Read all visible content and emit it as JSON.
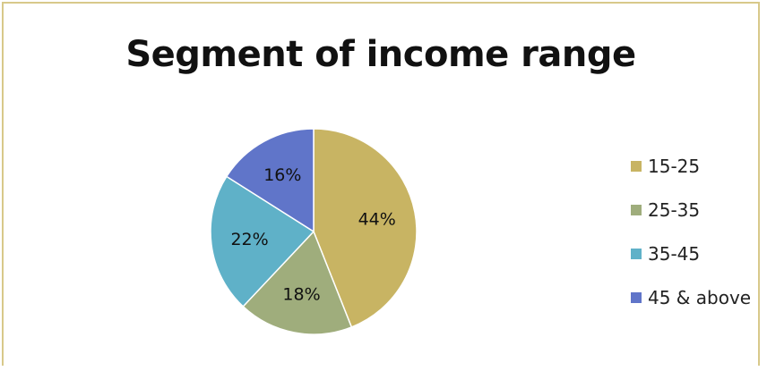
{
  "chart_data": {
    "type": "pie",
    "title": "Segment of income range",
    "categories": [
      "15-25",
      "25-35",
      "35-45",
      "45 & above"
    ],
    "values": [
      44,
      18,
      22,
      16
    ],
    "labels": [
      "44%",
      "18%",
      "22%",
      "16%"
    ],
    "colors": [
      "#c8b463",
      "#9fad7c",
      "#5fb1c8",
      "#6075c9"
    ],
    "legend_position": "right"
  }
}
